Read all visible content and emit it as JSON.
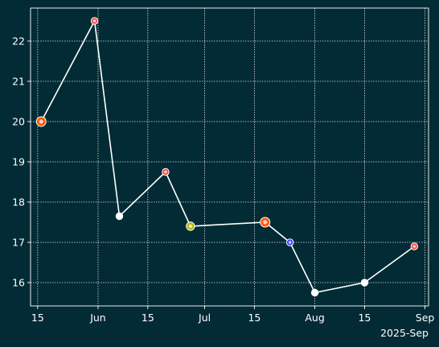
{
  "chart_data": {
    "type": "line",
    "x_axis": {
      "kind": "date",
      "range": [
        "2025-05-13",
        "2025-09-02"
      ],
      "ticks": [
        {
          "date": "2025-05-15",
          "label": "15"
        },
        {
          "date": "2025-06-01",
          "label": "Jun"
        },
        {
          "date": "2025-06-15",
          "label": "15"
        },
        {
          "date": "2025-07-01",
          "label": "Jul"
        },
        {
          "date": "2025-07-15",
          "label": "15"
        },
        {
          "date": "2025-08-01",
          "label": "Aug"
        },
        {
          "date": "2025-08-15",
          "label": "15"
        },
        {
          "date": "2025-09-01",
          "label": "Sep"
        }
      ],
      "offset_label": "2025-Sep"
    },
    "y_axis": {
      "range": [
        15.42,
        22.82
      ],
      "ticks": [
        16,
        17,
        18,
        19,
        20,
        21,
        22
      ]
    },
    "grid": true,
    "series": [
      {
        "line_color": "#ffffff",
        "points": [
          {
            "x": "2025-05-16",
            "y": 20.0,
            "color": "#ff5a0a",
            "size": "large"
          },
          {
            "x": "2025-05-31",
            "y": 22.5,
            "color": "#ff4747",
            "size": "small"
          },
          {
            "x": "2025-06-07",
            "y": 17.65,
            "color": "#ffffff",
            "size": "small"
          },
          {
            "x": "2025-06-20",
            "y": 18.75,
            "color": "#ff4747",
            "size": "small"
          },
          {
            "x": "2025-06-27",
            "y": 17.4,
            "color": "#b6b800",
            "size": "medium"
          },
          {
            "x": "2025-07-18",
            "y": 17.5,
            "color": "#ff5a0a",
            "size": "large"
          },
          {
            "x": "2025-07-25",
            "y": 17.0,
            "color": "#3d3dff",
            "size": "small"
          },
          {
            "x": "2025-08-01",
            "y": 15.75,
            "color": "#ffffff",
            "size": "small"
          },
          {
            "x": "2025-08-15",
            "y": 16.0,
            "color": "#ffffff",
            "size": "small"
          },
          {
            "x": "2025-08-29",
            "y": 16.9,
            "color": "#ff4747",
            "size": "small"
          }
        ]
      }
    ]
  }
}
